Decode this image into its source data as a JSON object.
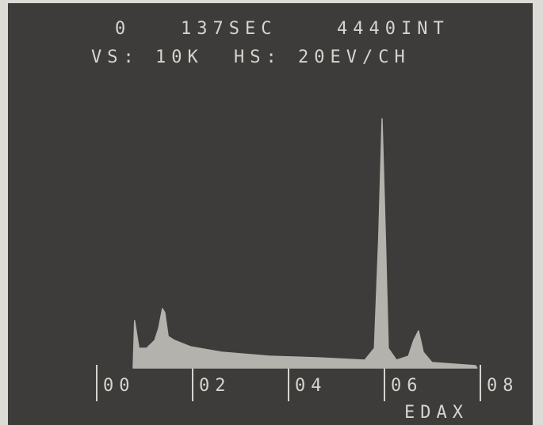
{
  "chart_data": {
    "type": "area",
    "annotations": [
      "0",
      "137SEC",
      "4440INT",
      "VS: 10K",
      "HS: 20EV/CH"
    ],
    "brand": "EDAX",
    "x": [
      0.76,
      0.79,
      0.88,
      1.04,
      1.21,
      1.29,
      1.37,
      1.42,
      1.49,
      1.62,
      1.95,
      2.61,
      3.6,
      4.6,
      5.59,
      5.79,
      5.88,
      5.95,
      6.02,
      6.08,
      6.25,
      6.5,
      6.61,
      6.71,
      6.81,
      6.99,
      7.9,
      7.93
    ],
    "values": [
      0,
      1500,
      625,
      625,
      875,
      1250,
      1875,
      1750,
      1000,
      875,
      675,
      500,
      375,
      325,
      250,
      625,
      4125,
      7875,
      4125,
      625,
      250,
      375,
      875,
      1175,
      500,
      175,
      75,
      0
    ],
    "color": "#b4b2ac",
    "xlim": [
      0,
      8
    ],
    "xticks": [
      {
        "value": 0,
        "label": "00"
      },
      {
        "value": 2,
        "label": "02"
      },
      {
        "value": 4,
        "label": "04"
      },
      {
        "value": 6,
        "label": "06"
      },
      {
        "value": 8,
        "label": "08"
      }
    ],
    "ylim": [
      0,
      10000
    ]
  }
}
